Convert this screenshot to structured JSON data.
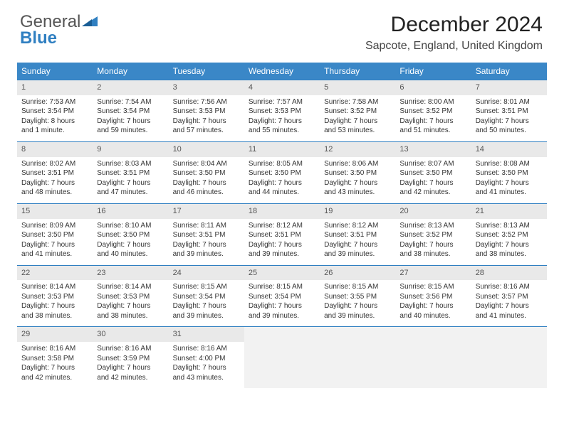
{
  "brand": {
    "text1": "General",
    "text2": "Blue"
  },
  "header": {
    "title": "December 2024",
    "subtitle": "Sapcote, England, United Kingdom"
  },
  "colors": {
    "accent": "#3a87c7",
    "rule": "#2f7fc1",
    "shade": "#e9e9e9",
    "empty": "#f2f2f2"
  },
  "weekdayHeaders": [
    "Sunday",
    "Monday",
    "Tuesday",
    "Wednesday",
    "Thursday",
    "Friday",
    "Saturday"
  ],
  "weeks": [
    [
      {
        "n": "1",
        "sr": "Sunrise: 7:53 AM",
        "ss": "Sunset: 3:54 PM",
        "d1": "Daylight: 8 hours",
        "d2": "and 1 minute."
      },
      {
        "n": "2",
        "sr": "Sunrise: 7:54 AM",
        "ss": "Sunset: 3:54 PM",
        "d1": "Daylight: 7 hours",
        "d2": "and 59 minutes."
      },
      {
        "n": "3",
        "sr": "Sunrise: 7:56 AM",
        "ss": "Sunset: 3:53 PM",
        "d1": "Daylight: 7 hours",
        "d2": "and 57 minutes."
      },
      {
        "n": "4",
        "sr": "Sunrise: 7:57 AM",
        "ss": "Sunset: 3:53 PM",
        "d1": "Daylight: 7 hours",
        "d2": "and 55 minutes."
      },
      {
        "n": "5",
        "sr": "Sunrise: 7:58 AM",
        "ss": "Sunset: 3:52 PM",
        "d1": "Daylight: 7 hours",
        "d2": "and 53 minutes."
      },
      {
        "n": "6",
        "sr": "Sunrise: 8:00 AM",
        "ss": "Sunset: 3:52 PM",
        "d1": "Daylight: 7 hours",
        "d2": "and 51 minutes."
      },
      {
        "n": "7",
        "sr": "Sunrise: 8:01 AM",
        "ss": "Sunset: 3:51 PM",
        "d1": "Daylight: 7 hours",
        "d2": "and 50 minutes."
      }
    ],
    [
      {
        "n": "8",
        "sr": "Sunrise: 8:02 AM",
        "ss": "Sunset: 3:51 PM",
        "d1": "Daylight: 7 hours",
        "d2": "and 48 minutes."
      },
      {
        "n": "9",
        "sr": "Sunrise: 8:03 AM",
        "ss": "Sunset: 3:51 PM",
        "d1": "Daylight: 7 hours",
        "d2": "and 47 minutes."
      },
      {
        "n": "10",
        "sr": "Sunrise: 8:04 AM",
        "ss": "Sunset: 3:50 PM",
        "d1": "Daylight: 7 hours",
        "d2": "and 46 minutes."
      },
      {
        "n": "11",
        "sr": "Sunrise: 8:05 AM",
        "ss": "Sunset: 3:50 PM",
        "d1": "Daylight: 7 hours",
        "d2": "and 44 minutes."
      },
      {
        "n": "12",
        "sr": "Sunrise: 8:06 AM",
        "ss": "Sunset: 3:50 PM",
        "d1": "Daylight: 7 hours",
        "d2": "and 43 minutes."
      },
      {
        "n": "13",
        "sr": "Sunrise: 8:07 AM",
        "ss": "Sunset: 3:50 PM",
        "d1": "Daylight: 7 hours",
        "d2": "and 42 minutes."
      },
      {
        "n": "14",
        "sr": "Sunrise: 8:08 AM",
        "ss": "Sunset: 3:50 PM",
        "d1": "Daylight: 7 hours",
        "d2": "and 41 minutes."
      }
    ],
    [
      {
        "n": "15",
        "sr": "Sunrise: 8:09 AM",
        "ss": "Sunset: 3:50 PM",
        "d1": "Daylight: 7 hours",
        "d2": "and 41 minutes."
      },
      {
        "n": "16",
        "sr": "Sunrise: 8:10 AM",
        "ss": "Sunset: 3:50 PM",
        "d1": "Daylight: 7 hours",
        "d2": "and 40 minutes."
      },
      {
        "n": "17",
        "sr": "Sunrise: 8:11 AM",
        "ss": "Sunset: 3:51 PM",
        "d1": "Daylight: 7 hours",
        "d2": "and 39 minutes."
      },
      {
        "n": "18",
        "sr": "Sunrise: 8:12 AM",
        "ss": "Sunset: 3:51 PM",
        "d1": "Daylight: 7 hours",
        "d2": "and 39 minutes."
      },
      {
        "n": "19",
        "sr": "Sunrise: 8:12 AM",
        "ss": "Sunset: 3:51 PM",
        "d1": "Daylight: 7 hours",
        "d2": "and 39 minutes."
      },
      {
        "n": "20",
        "sr": "Sunrise: 8:13 AM",
        "ss": "Sunset: 3:52 PM",
        "d1": "Daylight: 7 hours",
        "d2": "and 38 minutes."
      },
      {
        "n": "21",
        "sr": "Sunrise: 8:13 AM",
        "ss": "Sunset: 3:52 PM",
        "d1": "Daylight: 7 hours",
        "d2": "and 38 minutes."
      }
    ],
    [
      {
        "n": "22",
        "sr": "Sunrise: 8:14 AM",
        "ss": "Sunset: 3:53 PM",
        "d1": "Daylight: 7 hours",
        "d2": "and 38 minutes."
      },
      {
        "n": "23",
        "sr": "Sunrise: 8:14 AM",
        "ss": "Sunset: 3:53 PM",
        "d1": "Daylight: 7 hours",
        "d2": "and 38 minutes."
      },
      {
        "n": "24",
        "sr": "Sunrise: 8:15 AM",
        "ss": "Sunset: 3:54 PM",
        "d1": "Daylight: 7 hours",
        "d2": "and 39 minutes."
      },
      {
        "n": "25",
        "sr": "Sunrise: 8:15 AM",
        "ss": "Sunset: 3:54 PM",
        "d1": "Daylight: 7 hours",
        "d2": "and 39 minutes."
      },
      {
        "n": "26",
        "sr": "Sunrise: 8:15 AM",
        "ss": "Sunset: 3:55 PM",
        "d1": "Daylight: 7 hours",
        "d2": "and 39 minutes."
      },
      {
        "n": "27",
        "sr": "Sunrise: 8:15 AM",
        "ss": "Sunset: 3:56 PM",
        "d1": "Daylight: 7 hours",
        "d2": "and 40 minutes."
      },
      {
        "n": "28",
        "sr": "Sunrise: 8:16 AM",
        "ss": "Sunset: 3:57 PM",
        "d1": "Daylight: 7 hours",
        "d2": "and 41 minutes."
      }
    ],
    [
      {
        "n": "29",
        "sr": "Sunrise: 8:16 AM",
        "ss": "Sunset: 3:58 PM",
        "d1": "Daylight: 7 hours",
        "d2": "and 42 minutes."
      },
      {
        "n": "30",
        "sr": "Sunrise: 8:16 AM",
        "ss": "Sunset: 3:59 PM",
        "d1": "Daylight: 7 hours",
        "d2": "and 42 minutes."
      },
      {
        "n": "31",
        "sr": "Sunrise: 8:16 AM",
        "ss": "Sunset: 4:00 PM",
        "d1": "Daylight: 7 hours",
        "d2": "and 43 minutes."
      },
      null,
      null,
      null,
      null
    ]
  ]
}
